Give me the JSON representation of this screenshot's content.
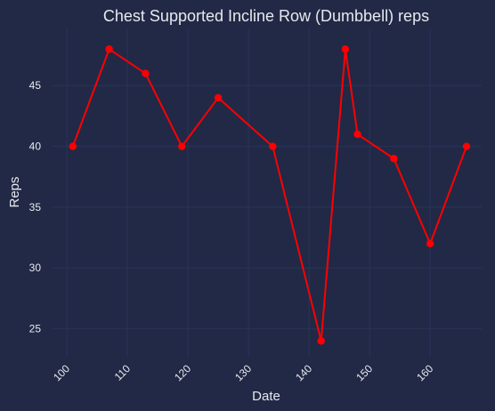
{
  "chart_data": {
    "type": "line",
    "title": "Chest Supported Incline Row (Dumbbell) reps",
    "xlabel": "Date",
    "ylabel": "Reps",
    "xlim": [
      97.5,
      168.5
    ],
    "ylim": [
      22.7,
      49.7
    ],
    "x_ticks": [
      100,
      110,
      120,
      130,
      140,
      150,
      160
    ],
    "y_ticks": [
      25,
      30,
      35,
      40,
      45
    ],
    "grid": true,
    "series": [
      {
        "color": "#ff0000",
        "points": [
          {
            "x": 101,
            "y": 40
          },
          {
            "x": 107,
            "y": 48
          },
          {
            "x": 113,
            "y": 46
          },
          {
            "x": 119,
            "y": 40
          },
          {
            "x": 125,
            "y": 44
          },
          {
            "x": 134,
            "y": 40
          },
          {
            "x": 142,
            "y": 24
          },
          {
            "x": 146,
            "y": 48
          },
          {
            "x": 148,
            "y": 41
          },
          {
            "x": 154,
            "y": 39
          },
          {
            "x": 160,
            "y": 32
          },
          {
            "x": 166,
            "y": 40
          }
        ]
      }
    ]
  },
  "colors": {
    "background": "#212946",
    "grid": "#2a3459",
    "text": "#e8e8ee",
    "series": "#ff0000"
  }
}
